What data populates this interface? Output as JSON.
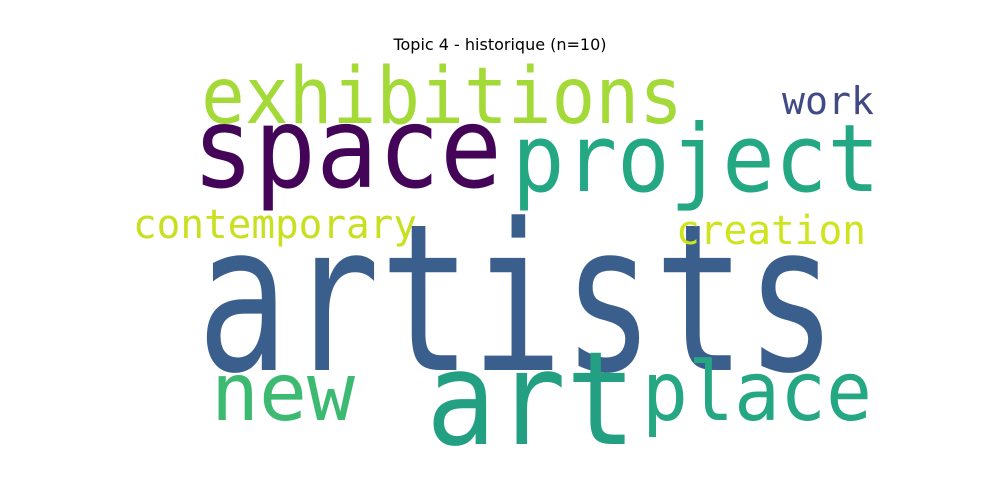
{
  "title": "Topic 4 - historique (n=10)",
  "words": [
    {
      "text": "artists",
      "color": "#3b5f8d"
    },
    {
      "text": "space",
      "color": "#440558"
    },
    {
      "text": "project",
      "color": "#24a883"
    },
    {
      "text": "exhibitions",
      "color": "#a3da37"
    },
    {
      "text": "art",
      "color": "#23a081"
    },
    {
      "text": "place",
      "color": "#25a784"
    },
    {
      "text": "new",
      "color": "#3dba72"
    },
    {
      "text": "contemporary",
      "color": "#c8e020"
    },
    {
      "text": "creation",
      "color": "#cee41c"
    },
    {
      "text": "work",
      "color": "#414a85"
    }
  ]
}
